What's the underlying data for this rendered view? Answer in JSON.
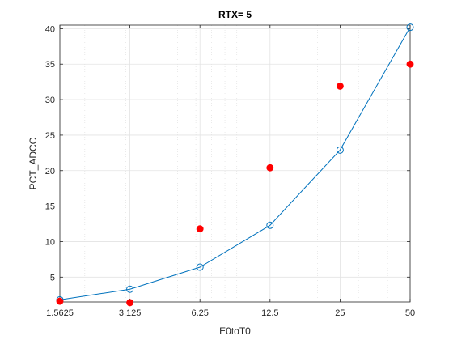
{
  "chart_data": {
    "type": "scatter",
    "title": "RTX=  5",
    "xlabel": "E0toT0",
    "ylabel": "PCT_ADCC",
    "xscale": "log",
    "xlim": [
      1.5625,
      50
    ],
    "ylim": [
      1.5,
      40.5
    ],
    "grid": true,
    "x_ticks": [
      "1.5625",
      "3.125",
      "6.25",
      "12.5",
      "25",
      "50"
    ],
    "y_ticks": [
      "5",
      "10",
      "15",
      "20",
      "25",
      "30",
      "35",
      "40"
    ],
    "x": [
      1.5625,
      3.125,
      6.25,
      12.5,
      25,
      50
    ],
    "series": [
      {
        "values": [
          1.8,
          3.3,
          6.4,
          12.3,
          22.9,
          40.2
        ],
        "style": "line-circle",
        "color": "#0072bd"
      },
      {
        "values": [
          1.6,
          1.4,
          11.8,
          20.4,
          31.9,
          35.0
        ],
        "style": "filled-dot",
        "color": "#ff0000"
      }
    ]
  }
}
